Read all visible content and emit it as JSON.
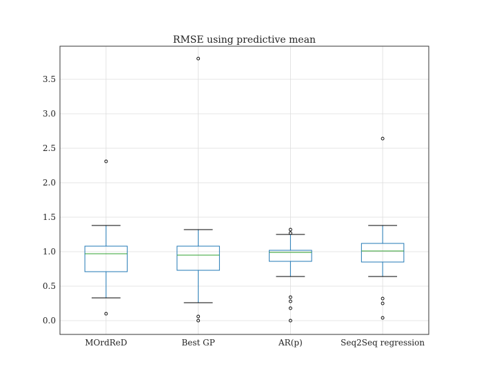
{
  "chart_data": {
    "type": "box",
    "title": "RMSE using predictive mean",
    "xlabel": "",
    "ylabel": "",
    "ylim": [
      -0.2,
      3.98
    ],
    "yticks": [
      {
        "value": 0.0,
        "label": "0.0"
      },
      {
        "value": 0.5,
        "label": "0.5"
      },
      {
        "value": 1.0,
        "label": "1.0"
      },
      {
        "value": 1.5,
        "label": "1.5"
      },
      {
        "value": 2.0,
        "label": "2.0"
      },
      {
        "value": 2.5,
        "label": "2.5"
      },
      {
        "value": 3.0,
        "label": "3.0"
      },
      {
        "value": 3.5,
        "label": "3.5"
      }
    ],
    "categories": [
      "MOrdReD",
      "Best GP",
      "AR(p)",
      "Seq2Seq regression"
    ],
    "boxes": [
      {
        "whisker_low": 0.33,
        "q1": 0.71,
        "median": 0.97,
        "q3": 1.08,
        "whisker_high": 1.38,
        "outliers": [
          0.1,
          2.31
        ]
      },
      {
        "whisker_low": 0.26,
        "q1": 0.73,
        "median": 0.95,
        "q3": 1.08,
        "whisker_high": 1.32,
        "outliers": [
          0.0,
          0.06,
          3.8
        ]
      },
      {
        "whisker_low": 0.64,
        "q1": 0.86,
        "median": 0.99,
        "q3": 1.02,
        "whisker_high": 1.25,
        "outliers": [
          0.0,
          0.18,
          0.28,
          0.34,
          1.27,
          1.32
        ]
      },
      {
        "whisker_low": 0.64,
        "q1": 0.85,
        "median": 1.01,
        "q3": 1.12,
        "whisker_high": 1.38,
        "outliers": [
          0.04,
          0.25,
          0.32,
          2.64
        ]
      }
    ],
    "grid": true,
    "colors": {
      "box": "#1f77b4",
      "median": "#2ca02c",
      "whisker": "#000000",
      "grid": "#dcdcdc",
      "axes": "#333333"
    }
  }
}
